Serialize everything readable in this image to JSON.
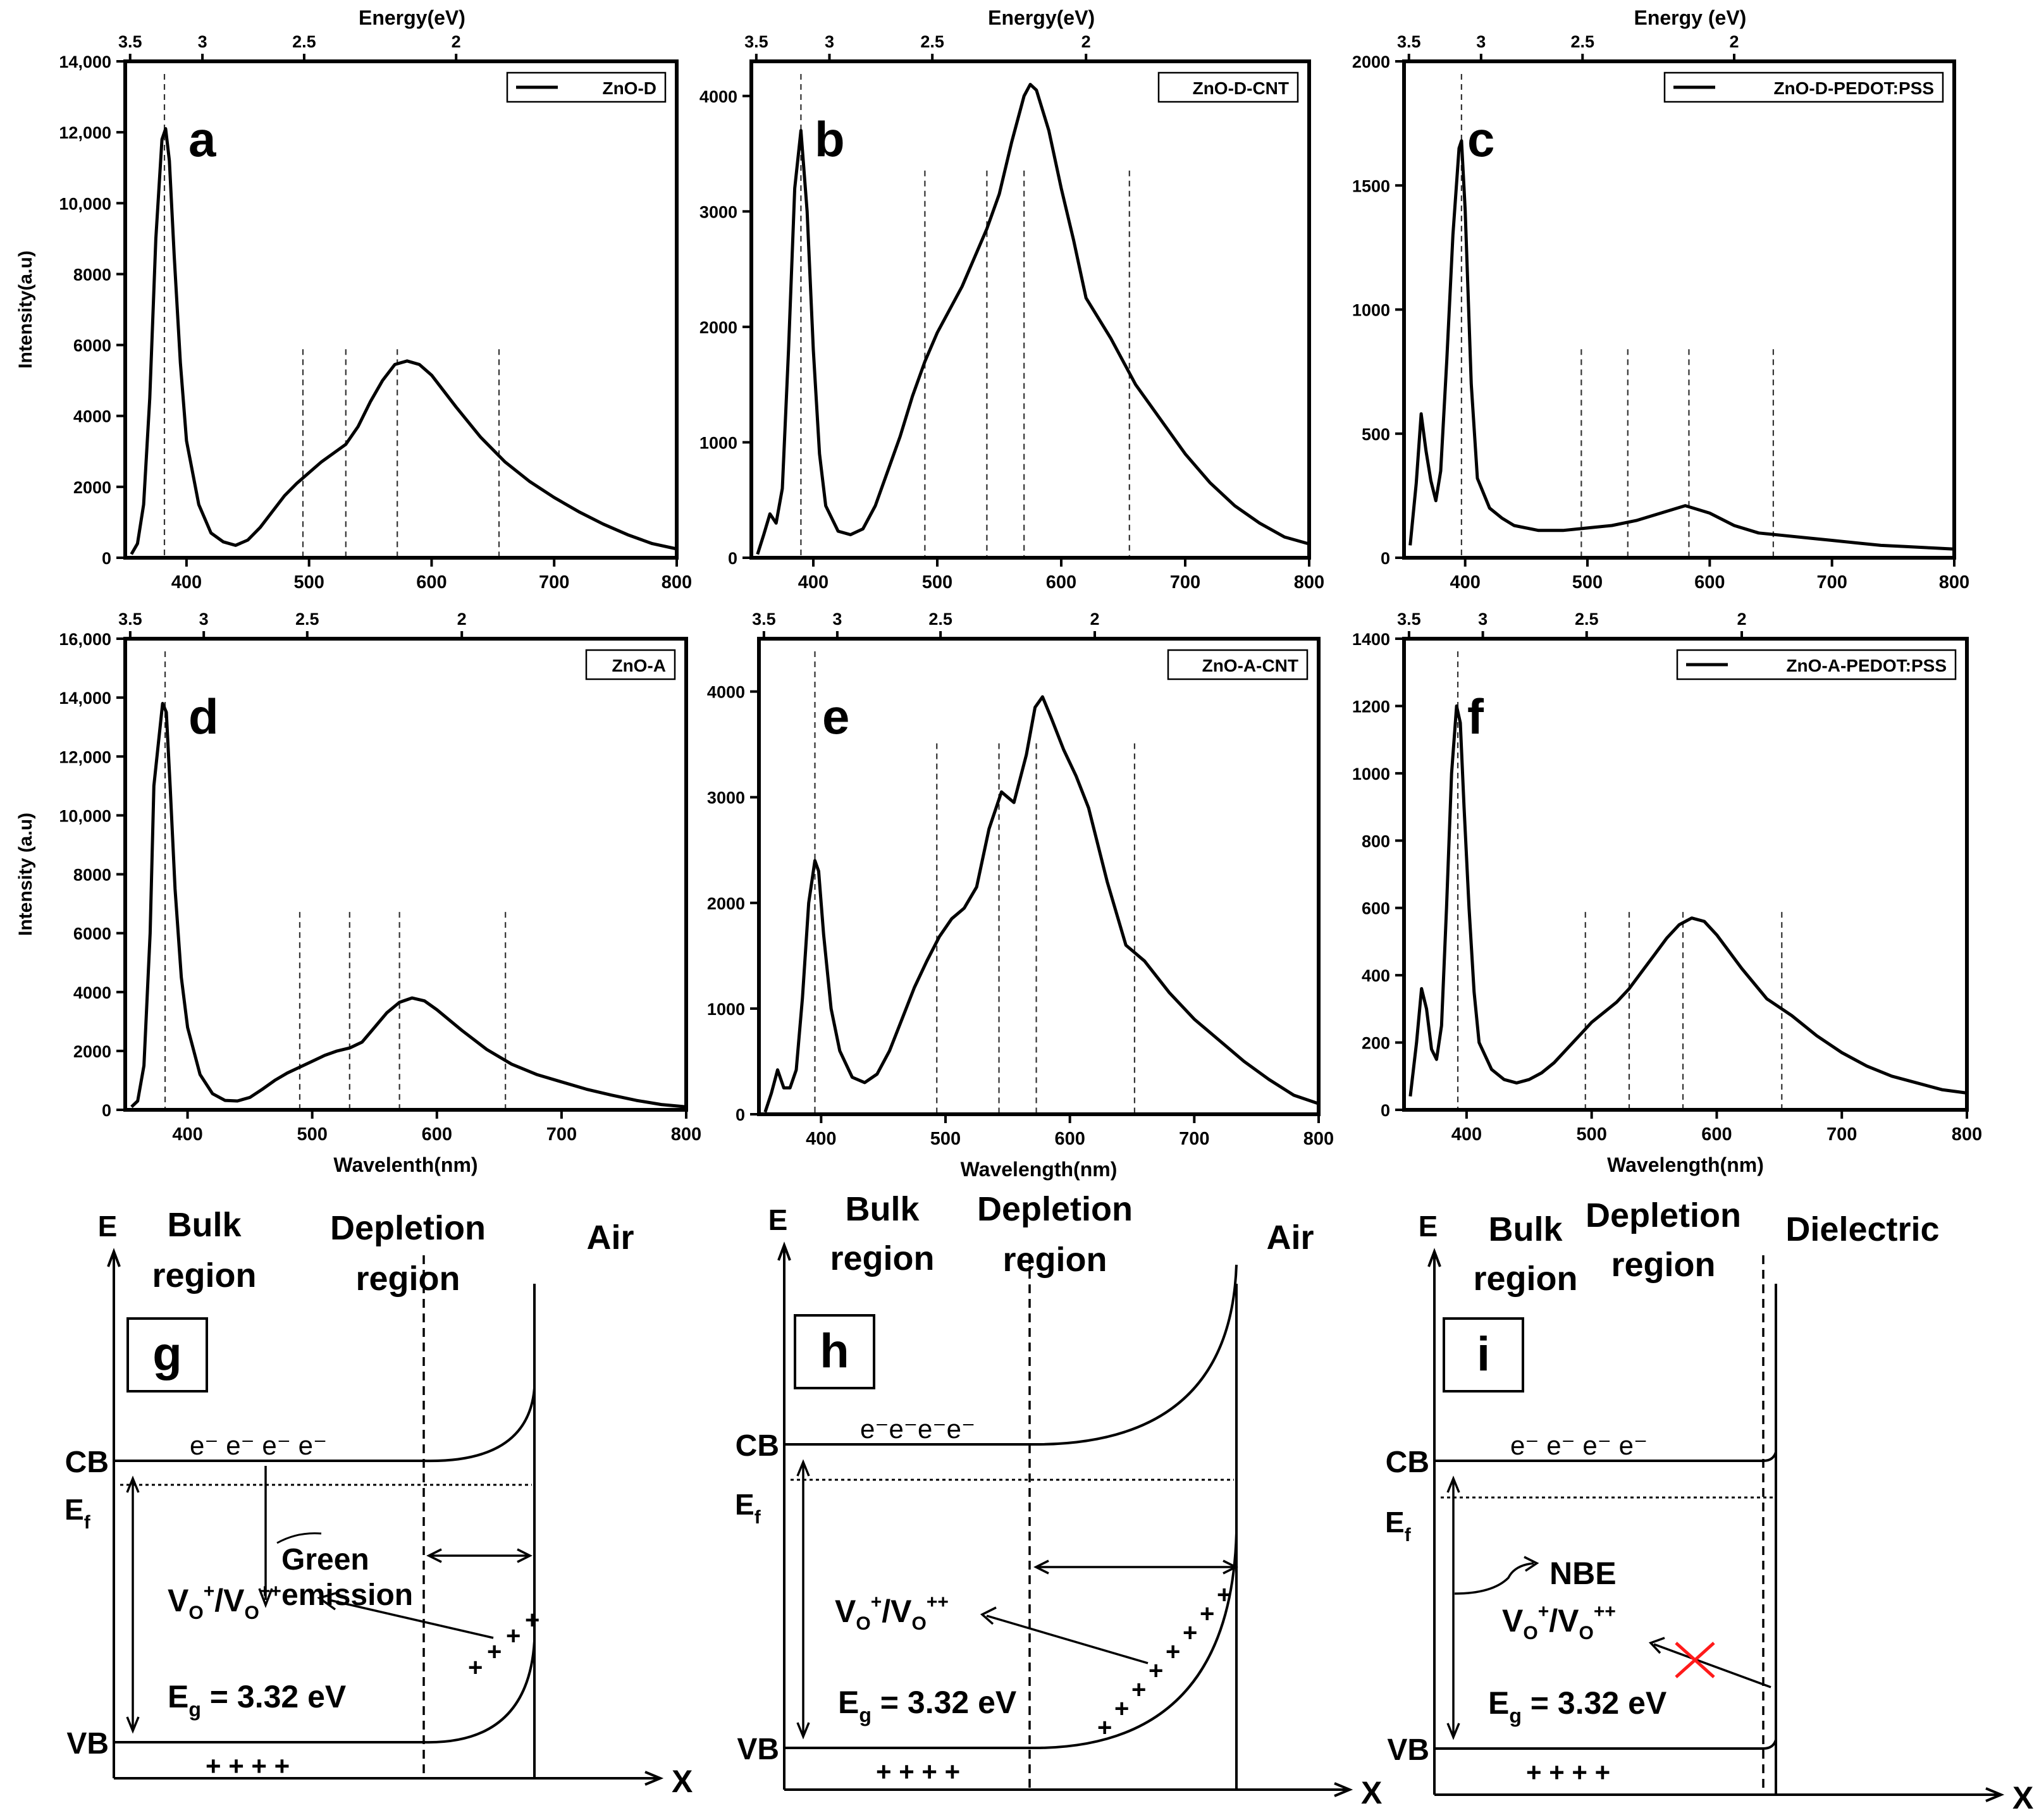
{
  "figure": {
    "panels": [
      {
        "id": "a",
        "sample": "ZnO-D",
        "letter": "a",
        "energy_label": "Energy(eV)",
        "ylabel": "Intensity(a.u)",
        "xlabel": ""
      },
      {
        "id": "b",
        "sample": "ZnO-D-CNT",
        "letter": "b",
        "energy_label": "Energy(eV)",
        "ylabel": "",
        "xlabel": ""
      },
      {
        "id": "c",
        "sample": "ZnO-D-PEDOT:PSS",
        "letter": "c",
        "energy_label": "Energy (eV)",
        "ylabel": "",
        "xlabel": ""
      },
      {
        "id": "d",
        "sample": "ZnO-A",
        "letter": "d",
        "energy_label": "",
        "ylabel": "Intensity (a.u)",
        "xlabel": "Wavelenth(nm)"
      },
      {
        "id": "e",
        "sample": "ZnO-A-CNT",
        "letter": "e",
        "energy_label": "",
        "ylabel": "",
        "xlabel": "Wavelength(nm)"
      },
      {
        "id": "f",
        "sample": "ZnO-A-PEDOT:PSS",
        "letter": "f",
        "energy_label": "",
        "ylabel": "",
        "xlabel": "Wavelength(nm)"
      }
    ],
    "diagrams": [
      {
        "id": "g",
        "letter": "g",
        "regions": [
          "Bulk",
          "region",
          "Depletion",
          "region",
          "Air"
        ],
        "electrons": "e⁻ e⁻ e⁻ e⁻",
        "holes": "+ + + +",
        "annotation": [
          "Green",
          "emission"
        ]
      },
      {
        "id": "h",
        "letter": "h",
        "regions": [
          "Bulk",
          "region",
          "Depletion",
          "region",
          "Air"
        ],
        "electrons": "e⁻e⁻e⁻e⁻",
        "holes": "+ + + +",
        "annotation": []
      },
      {
        "id": "i",
        "letter": "i",
        "regions": [
          "Bulk",
          "region",
          "Depletion",
          "region",
          "Dielectric"
        ],
        "electrons": "e⁻ e⁻ e⁻ e⁻",
        "holes": "+ + + +",
        "annotation": [
          "NBE"
        ]
      }
    ],
    "band_labels": {
      "E": "E",
      "X": "X",
      "CB": "CB",
      "VB": "VB",
      "Ef": "E",
      "Ef_sub": "f",
      "vacancy": "V",
      "vacancy_o": "O",
      "vacancy_plus": "+",
      "vacancy_pp": "++",
      "gap_E": "E",
      "gap_sub": "g",
      "gap_value": " = 3.32 eV"
    }
  },
  "chart_data": [
    {
      "type": "line",
      "panel": "a",
      "title": "ZnO-D",
      "xlabel": "",
      "ylabel": "Intensity(a.u)",
      "xlim": [
        350,
        800
      ],
      "ylim": [
        0,
        14000
      ],
      "xticks": [
        400,
        500,
        600,
        700,
        800
      ],
      "yticks": [
        0,
        2000,
        4000,
        6000,
        8000,
        10000,
        12000,
        14000
      ],
      "ytick_labels": [
        "0",
        "2000",
        "4000",
        "6000",
        "8000",
        "10,000",
        "12,000",
        "14,000"
      ],
      "top_axis": {
        "label": "Energy(eV)",
        "ticks": [
          "3.5",
          "3",
          "2.5",
          "2"
        ]
      },
      "vlines": [
        382,
        495,
        530,
        572,
        655
      ],
      "series": [
        {
          "name": "ZnO-D",
          "x": [
            355,
            360,
            365,
            370,
            375,
            380,
            383,
            386,
            390,
            395,
            400,
            410,
            420,
            430,
            440,
            450,
            460,
            470,
            480,
            490,
            500,
            510,
            520,
            530,
            540,
            550,
            560,
            570,
            580,
            590,
            600,
            620,
            640,
            660,
            680,
            700,
            720,
            740,
            760,
            780,
            800
          ],
          "y": [
            100,
            400,
            1500,
            4500,
            9000,
            11800,
            12100,
            11200,
            8500,
            5500,
            3300,
            1500,
            700,
            450,
            350,
            500,
            850,
            1300,
            1750,
            2100,
            2400,
            2700,
            2950,
            3200,
            3700,
            4400,
            5000,
            5450,
            5550,
            5450,
            5150,
            4250,
            3400,
            2700,
            2150,
            1700,
            1300,
            950,
            650,
            400,
            250
          ]
        }
      ]
    },
    {
      "type": "line",
      "panel": "b",
      "title": "ZnO-D-CNT",
      "xlabel": "",
      "ylabel": "",
      "xlim": [
        350,
        800
      ],
      "ylim": [
        0,
        4300
      ],
      "xticks": [
        400,
        500,
        600,
        700,
        800
      ],
      "yticks": [
        0,
        1000,
        2000,
        3000,
        4000
      ],
      "ytick_labels": [
        "0",
        "1000",
        "2000",
        "3000",
        "4000"
      ],
      "top_axis": {
        "label": "Energy(eV)",
        "ticks": [
          "3.5",
          "3",
          "2.5",
          "2"
        ]
      },
      "vlines": [
        390,
        490,
        540,
        570,
        655
      ],
      "series": [
        {
          "name": "ZnO-D-CNT",
          "x": [
            355,
            360,
            365,
            370,
            375,
            380,
            385,
            390,
            395,
            400,
            405,
            410,
            420,
            430,
            440,
            450,
            460,
            470,
            480,
            490,
            500,
            510,
            520,
            530,
            540,
            550,
            560,
            570,
            575,
            580,
            590,
            600,
            610,
            620,
            640,
            660,
            680,
            700,
            720,
            740,
            760,
            780,
            800
          ],
          "y": [
            30,
            200,
            380,
            300,
            600,
            1800,
            3200,
            3700,
            3000,
            1800,
            900,
            450,
            230,
            200,
            250,
            450,
            750,
            1050,
            1400,
            1700,
            1950,
            2150,
            2350,
            2600,
            2850,
            3150,
            3600,
            4000,
            4100,
            4050,
            3700,
            3200,
            2750,
            2250,
            1900,
            1500,
            1200,
            900,
            650,
            450,
            300,
            180,
            120
          ]
        }
      ]
    },
    {
      "type": "line",
      "panel": "c",
      "title": "ZnO-D-PEDOT:PSS",
      "xlabel": "",
      "ylabel": "",
      "xlim": [
        350,
        800
      ],
      "ylim": [
        0,
        2000
      ],
      "xticks": [
        400,
        500,
        600,
        700,
        800
      ],
      "yticks": [
        0,
        500,
        1000,
        1500,
        2000
      ],
      "ytick_labels": [
        "0",
        "500",
        "1000",
        "1500",
        "2000"
      ],
      "top_axis": {
        "label": "Energy (eV)",
        "ticks": [
          "3.5",
          "3",
          "2.5",
          "2"
        ]
      },
      "vlines": [
        397,
        495,
        533,
        583,
        652
      ],
      "series": [
        {
          "name": "ZnO-D-PEDOT:PSS",
          "x": [
            355,
            360,
            364,
            368,
            372,
            376,
            380,
            385,
            390,
            395,
            397,
            400,
            405,
            410,
            420,
            430,
            440,
            460,
            480,
            500,
            520,
            540,
            560,
            580,
            600,
            620,
            640,
            660,
            680,
            700,
            720,
            740,
            760,
            780,
            800
          ],
          "y": [
            50,
            300,
            580,
            430,
            310,
            230,
            350,
            800,
            1300,
            1650,
            1680,
            1400,
            700,
            320,
            200,
            160,
            130,
            110,
            110,
            120,
            130,
            150,
            180,
            210,
            180,
            130,
            100,
            90,
            80,
            70,
            60,
            50,
            45,
            40,
            35
          ]
        }
      ]
    },
    {
      "type": "line",
      "panel": "d",
      "title": "ZnO-A",
      "xlabel": "Wavelenth(nm)",
      "ylabel": "Intensity (a.u)",
      "xlim": [
        350,
        800
      ],
      "ylim": [
        0,
        16000
      ],
      "xticks": [
        400,
        500,
        600,
        700,
        800
      ],
      "yticks": [
        0,
        2000,
        4000,
        6000,
        8000,
        10000,
        12000,
        14000,
        16000
      ],
      "ytick_labels": [
        "0",
        "2000",
        "4000",
        "6000",
        "8000",
        "10,000",
        "12,000",
        "14,000",
        "16,000"
      ],
      "top_axis": {
        "label": "",
        "ticks": [
          "3.5",
          "3",
          "2.5",
          "2"
        ]
      },
      "vlines": [
        382,
        490,
        530,
        570,
        655
      ],
      "series": [
        {
          "name": "ZnO-A",
          "x": [
            355,
            360,
            365,
            370,
            373,
            376,
            380,
            383,
            386,
            390,
            395,
            400,
            410,
            420,
            430,
            440,
            450,
            460,
            470,
            480,
            490,
            500,
            510,
            520,
            530,
            540,
            550,
            560,
            570,
            580,
            590,
            600,
            620,
            640,
            660,
            680,
            700,
            720,
            740,
            760,
            780,
            800
          ],
          "y": [
            100,
            300,
            1500,
            6000,
            11000,
            12200,
            13800,
            13500,
            11000,
            7500,
            4500,
            2800,
            1200,
            550,
            320,
            300,
            420,
            700,
            1000,
            1250,
            1450,
            1650,
            1850,
            2000,
            2100,
            2300,
            2800,
            3300,
            3650,
            3800,
            3700,
            3400,
            2700,
            2050,
            1550,
            1200,
            950,
            700,
            500,
            320,
            180,
            100
          ]
        }
      ]
    },
    {
      "type": "line",
      "panel": "e",
      "title": "ZnO-A-CNT",
      "xlabel": "Wavelength(nm)",
      "ylabel": "",
      "xlim": [
        350,
        800
      ],
      "ylim": [
        0,
        4500
      ],
      "xticks": [
        400,
        500,
        600,
        700,
        800
      ],
      "yticks": [
        0,
        1000,
        2000,
        3000,
        4000
      ],
      "ytick_labels": [
        "0",
        "1000",
        "2000",
        "3000",
        "4000"
      ],
      "top_axis": {
        "label": "",
        "ticks": [
          "3.5",
          "3",
          "2.5",
          "2"
        ]
      },
      "vlines": [
        395,
        493,
        543,
        573,
        652
      ],
      "series": [
        {
          "name": "ZnO-A-CNT",
          "x": [
            355,
            360,
            365,
            370,
            375,
            380,
            385,
            390,
            395,
            398,
            402,
            408,
            415,
            425,
            435,
            445,
            455,
            465,
            475,
            485,
            495,
            505,
            515,
            525,
            535,
            545,
            550,
            555,
            565,
            572,
            578,
            585,
            595,
            605,
            615,
            630,
            645,
            660,
            680,
            700,
            720,
            740,
            760,
            780,
            800
          ],
          "y": [
            20,
            200,
            420,
            250,
            250,
            420,
            1100,
            2000,
            2400,
            2300,
            1700,
            1000,
            600,
            350,
            300,
            380,
            600,
            900,
            1200,
            1450,
            1680,
            1850,
            1950,
            2150,
            2700,
            3050,
            3000,
            2950,
            3400,
            3850,
            3950,
            3750,
            3450,
            3200,
            2900,
            2200,
            1600,
            1450,
            1150,
            900,
            700,
            500,
            330,
            180,
            100
          ]
        }
      ]
    },
    {
      "type": "line",
      "panel": "f",
      "title": "ZnO-A-PEDOT:PSS",
      "xlabel": "Wavelength(nm)",
      "ylabel": "",
      "xlim": [
        350,
        800
      ],
      "ylim": [
        0,
        1400
      ],
      "xticks": [
        400,
        500,
        600,
        700,
        800
      ],
      "yticks": [
        0,
        200,
        400,
        600,
        800,
        1000,
        1200,
        1400
      ],
      "ytick_labels": [
        "0",
        "200",
        "400",
        "600",
        "800",
        "1000",
        "1200",
        "1400"
      ],
      "top_axis": {
        "label": "",
        "ticks": [
          "3.5",
          "3",
          "2.5",
          "2"
        ]
      },
      "vlines": [
        393,
        495,
        530,
        573,
        652
      ],
      "series": [
        {
          "name": "ZnO-A-PEDOT:PSS",
          "x": [
            355,
            360,
            364,
            368,
            372,
            376,
            380,
            384,
            388,
            392,
            395,
            398,
            402,
            406,
            410,
            420,
            430,
            440,
            450,
            460,
            470,
            480,
            490,
            500,
            510,
            520,
            530,
            540,
            550,
            560,
            570,
            580,
            590,
            600,
            620,
            640,
            660,
            680,
            700,
            720,
            740,
            760,
            780,
            800
          ],
          "y": [
            40,
            200,
            360,
            300,
            180,
            150,
            250,
            600,
            1000,
            1200,
            1150,
            900,
            600,
            350,
            200,
            120,
            90,
            80,
            90,
            110,
            140,
            180,
            220,
            260,
            290,
            320,
            360,
            410,
            460,
            510,
            550,
            570,
            560,
            520,
            420,
            330,
            280,
            220,
            170,
            130,
            100,
            80,
            60,
            50
          ]
        }
      ]
    }
  ]
}
